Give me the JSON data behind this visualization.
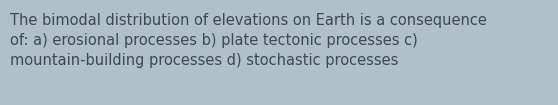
{
  "text_line1": "The bimodal distribution of elevations on Earth is a consequence",
  "text_line2": "of: a) erosional processes b) plate tectonic processes c)",
  "text_line3": "mountain-building processes d) stochastic processes",
  "background_color": "#b0bfc8",
  "text_color": "#3d4a52",
  "font_size": 10.5,
  "fig_width": 5.58,
  "fig_height": 1.05,
  "dpi": 100
}
